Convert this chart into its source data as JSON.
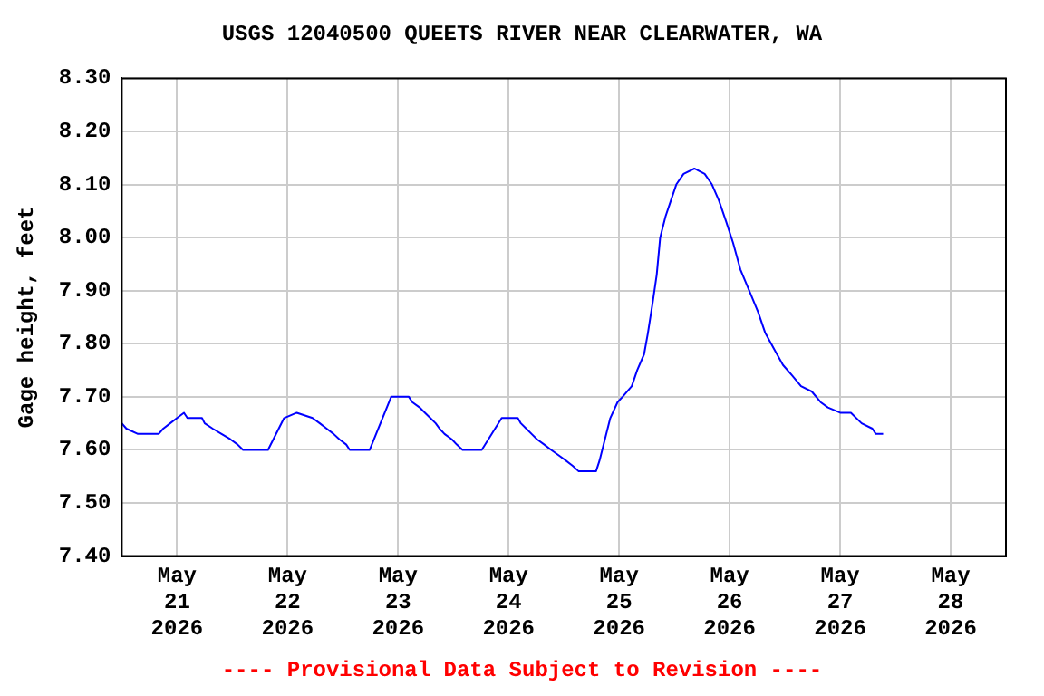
{
  "chart_data": {
    "type": "line",
    "title": "USGS 12040500 QUEETS RIVER NEAR CLEARWATER, WA",
    "ylabel": "Gage height, feet",
    "annotations": [
      "---- Provisional Data Subject to Revision ----"
    ],
    "x": [
      "2026-05-20T12:00",
      "2026-05-20T13:00",
      "2026-05-20T15:30",
      "2026-05-20T20:00",
      "2026-05-20T21:00",
      "2026-05-20T22:30",
      "2026-05-21T00:00",
      "2026-05-21T01:30",
      "2026-05-21T02:15",
      "2026-05-21T05:25",
      "2026-05-21T06:00",
      "2026-05-21T07:45",
      "2026-05-21T09:40",
      "2026-05-21T11:35",
      "2026-05-21T13:10",
      "2026-05-21T14:20",
      "2026-05-21T19:45",
      "2026-05-21T23:15",
      "2026-05-22T02:00",
      "2026-05-22T05:25",
      "2026-05-22T07:00",
      "2026-05-22T08:30",
      "2026-05-22T10:00",
      "2026-05-22T11:15",
      "2026-05-22T12:45",
      "2026-05-22T13:30",
      "2026-05-22T17:50",
      "2026-05-22T22:30",
      "2026-05-23T02:20",
      "2026-05-23T03:05",
      "2026-05-23T04:40",
      "2026-05-23T05:50",
      "2026-05-23T07:00",
      "2026-05-23T08:10",
      "2026-05-23T09:00",
      "2026-05-23T10:05",
      "2026-05-23T11:40",
      "2026-05-23T12:45",
      "2026-05-23T14:00",
      "2026-05-23T18:10",
      "2026-05-23T22:30",
      "2026-05-24T02:00",
      "2026-05-24T02:40",
      "2026-05-24T03:50",
      "2026-05-24T05:00",
      "2026-05-24T06:10",
      "2026-05-24T07:45",
      "2026-05-24T09:15",
      "2026-05-24T10:50",
      "2026-05-24T12:25",
      "2026-05-24T13:55",
      "2026-05-24T15:10",
      "2026-05-24T19:00",
      "2026-05-24T19:45",
      "2026-05-24T20:55",
      "2026-05-24T22:05",
      "2026-05-24T23:40",
      "2026-05-25T00:45",
      "2026-05-25T02:45",
      "2026-05-25T03:55",
      "2026-05-25T05:25",
      "2026-05-25T06:15",
      "2026-05-25T07:20",
      "2026-05-25T08:10",
      "2026-05-25T08:55",
      "2026-05-25T10:05",
      "2026-05-25T11:15",
      "2026-05-25T12:25",
      "2026-05-25T14:00",
      "2026-05-25T16:20",
      "2026-05-25T18:35",
      "2026-05-25T20:10",
      "2026-05-25T21:40",
      "2026-05-25T23:15",
      "2026-05-26T00:45",
      "2026-05-26T02:20",
      "2026-05-26T04:15",
      "2026-05-26T06:10",
      "2026-05-26T07:45",
      "2026-05-26T09:40",
      "2026-05-26T11:35",
      "2026-05-26T13:35",
      "2026-05-26T15:30",
      "2026-05-26T17:50",
      "2026-05-26T19:45",
      "2026-05-26T21:20",
      "2026-05-27T00:00",
      "2026-05-27T02:20",
      "2026-05-27T04:40",
      "2026-05-27T07:00",
      "2026-05-27T07:45",
      "2026-05-27T09:20"
    ],
    "series": [
      {
        "color": "#0000ff",
        "values": [
          7.65,
          7.64,
          7.63,
          7.63,
          7.64,
          7.65,
          7.66,
          7.67,
          7.66,
          7.66,
          7.65,
          7.64,
          7.63,
          7.62,
          7.61,
          7.6,
          7.6,
          7.66,
          7.67,
          7.66,
          7.65,
          7.64,
          7.63,
          7.62,
          7.61,
          7.6,
          7.6,
          7.7,
          7.7,
          7.69,
          7.68,
          7.67,
          7.66,
          7.65,
          7.64,
          7.63,
          7.62,
          7.61,
          7.6,
          7.6,
          7.66,
          7.66,
          7.65,
          7.64,
          7.63,
          7.62,
          7.61,
          7.6,
          7.59,
          7.58,
          7.57,
          7.56,
          7.56,
          7.58,
          7.62,
          7.66,
          7.69,
          7.7,
          7.72,
          7.75,
          7.78,
          7.82,
          7.88,
          7.93,
          8.0,
          8.04,
          8.07,
          8.1,
          8.12,
          8.13,
          8.12,
          8.1,
          8.07,
          8.03,
          7.99,
          7.94,
          7.9,
          7.86,
          7.82,
          7.79,
          7.76,
          7.74,
          7.72,
          7.71,
          7.69,
          7.68,
          7.67,
          7.67,
          7.65,
          7.64,
          7.63,
          7.63
        ]
      }
    ],
    "xlim": [
      "2026-05-20T12:00",
      "2026-05-28T12:00"
    ],
    "xticks": [
      {
        "value": "2026-05-21",
        "label": "May 21 2026"
      },
      {
        "value": "2026-05-22",
        "label": "May 22 2026"
      },
      {
        "value": "2026-05-23",
        "label": "May 23 2026"
      },
      {
        "value": "2026-05-24",
        "label": "May 24 2026"
      },
      {
        "value": "2026-05-25",
        "label": "May 25 2026"
      },
      {
        "value": "2026-05-26",
        "label": "May 26 2026"
      },
      {
        "value": "2026-05-27",
        "label": "May 27 2026"
      },
      {
        "value": "2026-05-28",
        "label": "May 28 2026"
      }
    ],
    "ylim": [
      7.4,
      8.3
    ],
    "yticks": [
      {
        "value": 7.4,
        "label": "7.40"
      },
      {
        "value": 7.5,
        "label": "7.50"
      },
      {
        "value": 7.6,
        "label": "7.60"
      },
      {
        "value": 7.7,
        "label": "7.70"
      },
      {
        "value": 7.8,
        "label": "7.80"
      },
      {
        "value": 7.9,
        "label": "7.90"
      },
      {
        "value": 8.0,
        "label": "8.00"
      },
      {
        "value": 8.1,
        "label": "8.10"
      },
      {
        "value": 8.2,
        "label": "8.20"
      },
      {
        "value": 8.3,
        "label": "8.30"
      }
    ],
    "grid": true,
    "legend": false,
    "marker": "none",
    "line_style": "solid"
  }
}
